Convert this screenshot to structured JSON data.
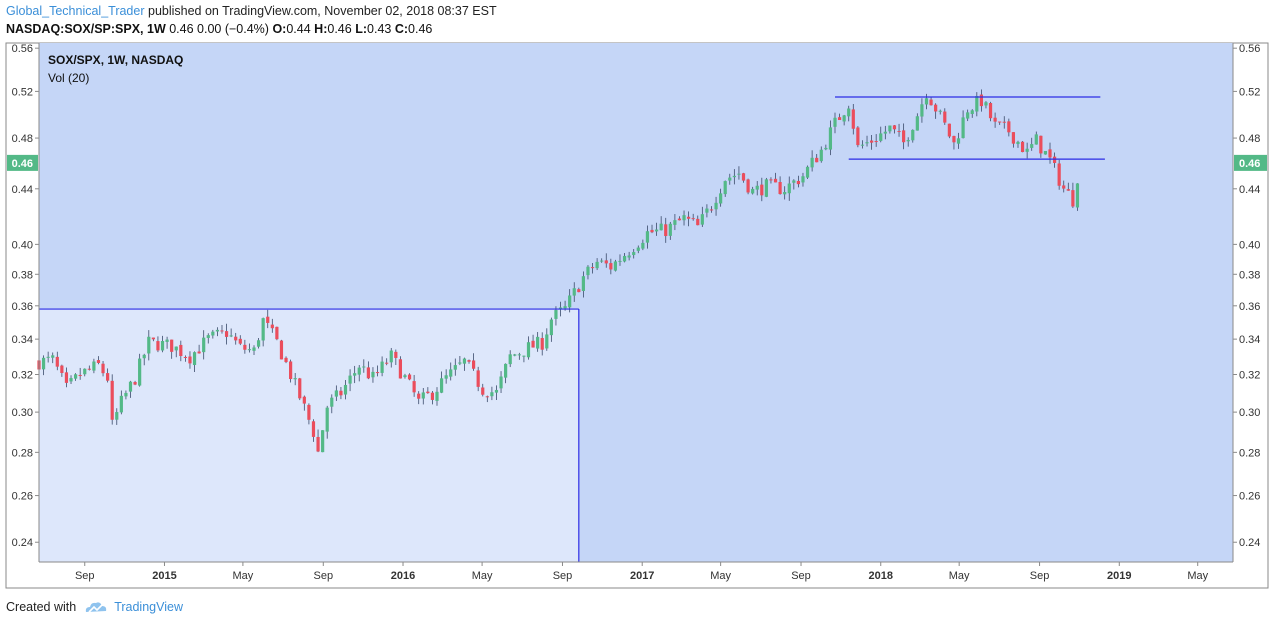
{
  "header": {
    "author": "Global_Technical_Trader",
    "published": " published on TradingView.com, November 02, 2018 08:37 EST",
    "symbol_line": "NASDAQ:SOX/SP:SPX, 1W",
    "price_change": "0.46  0.00 (−0.4%)",
    "o_label": "O:",
    "o_value": "0.44",
    "h_label": "H:",
    "h_value": "0.46",
    "l_label": "L:",
    "l_value": "0.43",
    "c_label": "C:",
    "c_value": "0.46"
  },
  "footer": {
    "created_with": "Created with",
    "brand": "TradingView",
    "brand_icon": "tradingview-cloud-icon"
  },
  "colors": {
    "background": "#c5d6f7",
    "shaded_box": "#dde7fb",
    "up": "#53b987",
    "down": "#eb4d5c",
    "lines": "#2c2ce6",
    "last_price_badge": "#53b987",
    "author": "#3b8fd8"
  },
  "chart_data": {
    "type": "candlestick",
    "title": "SOX/SPX, 1W, NASDAQ",
    "indicator": "Vol (20)",
    "y_scale": "log",
    "ylim": [
      0.232,
      0.565
    ],
    "y_ticks": [
      0.24,
      0.26,
      0.28,
      0.3,
      0.32,
      0.34,
      0.36,
      0.38,
      0.4,
      0.44,
      0.48,
      0.52,
      0.56
    ],
    "y_tick_labels": [
      "0.24",
      "0.26",
      "0.28",
      "0.30",
      "0.32",
      "0.34",
      "0.36",
      "0.38",
      "0.40",
      "0.44",
      "0.48",
      "0.52",
      "0.56"
    ],
    "last_price_label": "0.46",
    "last_price": 0.46,
    "x_ticks": [
      {
        "label": "Sep",
        "date": "2014-09-01",
        "bold": false
      },
      {
        "label": "2015",
        "date": "2015-01-01",
        "bold": true
      },
      {
        "label": "May",
        "date": "2015-05-01",
        "bold": false
      },
      {
        "label": "Sep",
        "date": "2015-09-01",
        "bold": false
      },
      {
        "label": "2016",
        "date": "2016-01-01",
        "bold": true
      },
      {
        "label": "May",
        "date": "2016-05-01",
        "bold": false
      },
      {
        "label": "Sep",
        "date": "2016-09-01",
        "bold": false
      },
      {
        "label": "2017",
        "date": "2017-01-01",
        "bold": true
      },
      {
        "label": "May",
        "date": "2017-05-01",
        "bold": false
      },
      {
        "label": "Sep",
        "date": "2017-09-01",
        "bold": false
      },
      {
        "label": "2018",
        "date": "2018-01-01",
        "bold": true
      },
      {
        "label": "May",
        "date": "2018-05-01",
        "bold": false
      },
      {
        "label": "Sep",
        "date": "2018-09-01",
        "bold": false
      },
      {
        "label": "2019",
        "date": "2019-01-01",
        "bold": true
      },
      {
        "label": "May",
        "date": "2019-05-01",
        "bold": false
      }
    ],
    "xlim": [
      "2014-06-23",
      "2019-06-24"
    ],
    "path": [
      [
        "2014-06-23",
        0.327
      ],
      [
        "2014-07-14",
        0.328
      ],
      [
        "2014-08-04",
        0.312
      ],
      [
        "2014-08-25",
        0.32
      ],
      [
        "2014-09-22",
        0.325
      ],
      [
        "2014-10-06",
        0.318
      ],
      [
        "2014-10-13",
        0.293
      ],
      [
        "2014-10-27",
        0.305
      ],
      [
        "2014-11-17",
        0.318
      ],
      [
        "2014-12-08",
        0.338
      ],
      [
        "2015-01-12",
        0.336
      ],
      [
        "2015-02-09",
        0.33
      ],
      [
        "2015-03-09",
        0.34
      ],
      [
        "2015-04-06",
        0.344
      ],
      [
        "2015-04-27",
        0.335
      ],
      [
        "2015-05-18",
        0.333
      ],
      [
        "2015-06-01",
        0.351
      ],
      [
        "2015-06-22",
        0.338
      ],
      [
        "2015-07-13",
        0.32
      ],
      [
        "2015-07-27",
        0.308
      ],
      [
        "2015-08-17",
        0.29
      ],
      [
        "2015-08-24",
        0.28
      ],
      [
        "2015-09-07",
        0.303
      ],
      [
        "2015-09-28",
        0.31
      ],
      [
        "2015-10-26",
        0.325
      ],
      [
        "2015-11-16",
        0.318
      ],
      [
        "2015-12-14",
        0.33
      ],
      [
        "2016-01-04",
        0.318
      ],
      [
        "2016-01-25",
        0.305
      ],
      [
        "2016-02-15",
        0.31
      ],
      [
        "2016-03-07",
        0.318
      ],
      [
        "2016-04-04",
        0.327
      ],
      [
        "2016-05-02",
        0.312
      ],
      [
        "2016-05-23",
        0.31
      ],
      [
        "2016-06-13",
        0.33
      ],
      [
        "2016-07-11",
        0.335
      ],
      [
        "2016-08-01",
        0.338
      ],
      [
        "2016-08-15",
        0.352
      ],
      [
        "2016-09-05",
        0.358
      ],
      [
        "2016-10-03",
        0.378
      ],
      [
        "2016-10-24",
        0.388
      ],
      [
        "2016-11-14",
        0.385
      ],
      [
        "2016-12-12",
        0.396
      ],
      [
        "2017-01-09",
        0.408
      ],
      [
        "2017-02-06",
        0.41
      ],
      [
        "2017-03-06",
        0.418
      ],
      [
        "2017-03-27",
        0.412
      ],
      [
        "2017-04-17",
        0.428
      ],
      [
        "2017-05-08",
        0.448
      ],
      [
        "2017-05-29",
        0.452
      ],
      [
        "2017-06-19",
        0.438
      ],
      [
        "2017-07-10",
        0.442
      ],
      [
        "2017-08-07",
        0.44
      ],
      [
        "2017-09-04",
        0.45
      ],
      [
        "2017-10-02",
        0.47
      ],
      [
        "2017-10-23",
        0.492
      ],
      [
        "2017-11-13",
        0.51
      ],
      [
        "2017-11-27",
        0.472
      ],
      [
        "2017-12-18",
        0.478
      ],
      [
        "2018-01-15",
        0.488
      ],
      [
        "2018-02-05",
        0.476
      ],
      [
        "2018-02-26",
        0.5
      ],
      [
        "2018-03-12",
        0.52
      ],
      [
        "2018-04-02",
        0.498
      ],
      [
        "2018-04-23",
        0.475
      ],
      [
        "2018-05-14",
        0.505
      ],
      [
        "2018-06-04",
        0.512
      ],
      [
        "2018-06-25",
        0.49
      ],
      [
        "2018-07-16",
        0.486
      ],
      [
        "2018-08-13",
        0.468
      ],
      [
        "2018-08-27",
        0.478
      ],
      [
        "2018-09-17",
        0.462
      ],
      [
        "2018-10-08",
        0.44
      ],
      [
        "2018-10-22",
        0.432
      ],
      [
        "2018-11-02",
        0.46
      ]
    ],
    "lines": [
      {
        "x1": "2014-06-23",
        "y1": 0.358,
        "x2": "2016-09-26",
        "y2": 0.358
      },
      {
        "x1": "2016-09-26",
        "y1": 0.358,
        "x2": "2016-09-26",
        "y2": 0.232
      },
      {
        "x1": "2017-10-23",
        "y1": 0.515,
        "x2": "2018-12-03",
        "y2": 0.515
      },
      {
        "x1": "2017-11-13",
        "y1": 0.463,
        "x2": "2018-12-10",
        "y2": 0.463
      }
    ],
    "shaded_region": {
      "x1": "2014-06-23",
      "x2": "2016-09-26",
      "y_top": 0.358,
      "y_bottom": 0.232
    }
  }
}
